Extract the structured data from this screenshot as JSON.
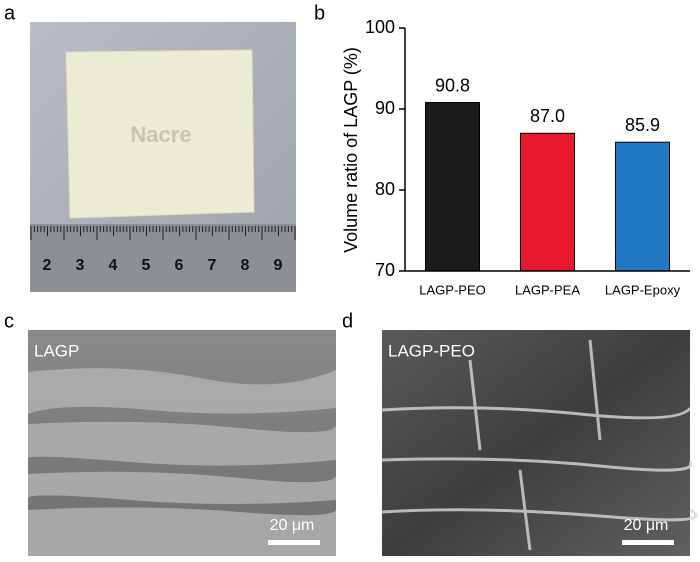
{
  "panels": {
    "a": {
      "label": "a",
      "photo_text": "Nacre",
      "ruler_labels": [
        "2",
        "3",
        "4",
        "5",
        "6",
        "7",
        "8",
        "9"
      ]
    },
    "b": {
      "label": "b"
    },
    "c": {
      "label": "c",
      "image_text": "LAGP",
      "scale_bar": "20 μm"
    },
    "d": {
      "label": "d",
      "image_text": "LAGP-PEO",
      "scale_bar": "20 μm"
    }
  },
  "chart_data": {
    "type": "bar",
    "y_label": "Volume ratio of LAGP (%)",
    "categories": [
      "LAGP-PEO",
      "LAGP-PEA",
      "LAGP-Epoxy"
    ],
    "values": [
      90.8,
      87.0,
      85.9
    ],
    "value_labels": [
      "90.8",
      "87.0",
      "85.9"
    ],
    "colors": [
      "#1b1b1b",
      "#e8192c",
      "#2178c4"
    ],
    "ylim": [
      70,
      100
    ],
    "yticks": [
      70,
      80,
      90,
      100
    ]
  }
}
